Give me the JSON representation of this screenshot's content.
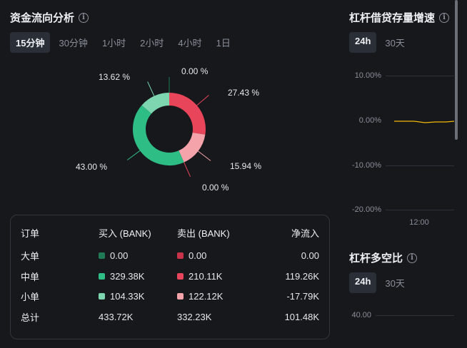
{
  "fund_flow": {
    "title": "资金流向分析",
    "tabs": [
      "15分钟",
      "30分钟",
      "1小时",
      "2小时",
      "4小时",
      "1日"
    ],
    "active_tab": "15分钟",
    "donut": {
      "slices": [
        {
          "label": "27.43 %",
          "value": 27.43,
          "color": "#e8455a"
        },
        {
          "label": "15.94 %",
          "value": 15.94,
          "color": "#f5a3ab"
        },
        {
          "label": "0.00 %",
          "value": 0.0,
          "color": "#f9c6cb"
        },
        {
          "label": "43.00 %",
          "value": 43.0,
          "color": "#2ebd85"
        },
        {
          "label": "13.62 %",
          "value": 13.62,
          "color": "#7ed6b0"
        },
        {
          "label": "0.00 %",
          "value": 0.0,
          "color": "#1f7a55"
        }
      ]
    },
    "table": {
      "headers": [
        "订单",
        "买入 (BANK)",
        "卖出 (BANK)",
        "净流入"
      ],
      "rows": [
        {
          "name": "大单",
          "buy": "0.00",
          "sell": "0.00",
          "net": "0.00",
          "buy_color": "#1f7a55",
          "sell_color": "#c8334a"
        },
        {
          "name": "中单",
          "buy": "329.38K",
          "sell": "210.11K",
          "net": "119.26K",
          "buy_color": "#2ebd85",
          "sell_color": "#e8455a"
        },
        {
          "name": "小单",
          "buy": "104.33K",
          "sell": "122.12K",
          "net": "-17.79K",
          "buy_color": "#7ed6b0",
          "sell_color": "#f5a3ab"
        },
        {
          "name": "总计",
          "buy": "433.72K",
          "sell": "332.23K",
          "net": "101.48K"
        }
      ]
    }
  },
  "margin_growth": {
    "title": "杠杆借贷存量增速",
    "tabs": [
      "24h",
      "30天"
    ],
    "active_tab": "24h",
    "y_ticks": [
      "10.00%",
      "0.00%",
      "-10.00%",
      "-20.00%"
    ],
    "x_ticks": [
      "12:00"
    ]
  },
  "long_short": {
    "title": "杠杆多空比",
    "tabs": [
      "24h",
      "30天"
    ],
    "active_tab": "24h",
    "y_ticks": [
      "40.00"
    ]
  },
  "colors": {
    "accent_line": "#f0b90b"
  },
  "icons": {
    "info": "i"
  }
}
